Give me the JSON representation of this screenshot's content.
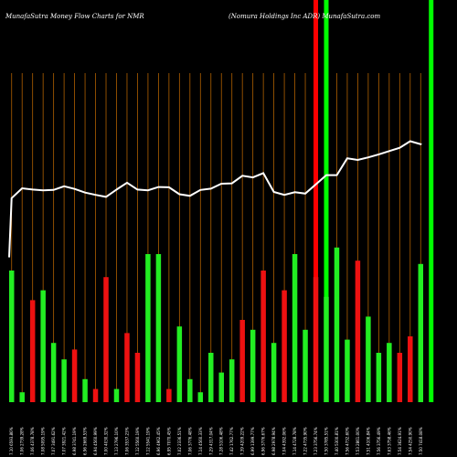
{
  "header": {
    "left": "MunafaSutra  Money Flow  Charts for NMR",
    "right": "(Nomura  Holdings  Inc ADR) MunafaSutra.com"
  },
  "chart_data": {
    "type": "bar",
    "title": "MunafaSutra  Money Flow  Charts for NMR",
    "subtitle": "(Nomura  Holdings  Inc ADR) MunafaSutra.com",
    "categories": [
      "7.10 6593.86%",
      "7.06 2739.28%",
      "7.06 4378.78%",
      "7.08 5095.19%",
      "7.07 3491.62%",
      "7.07 3921.42%",
      "6.98 3741.19%",
      "6.96 2669.53%",
      "6.94 4560.99%",
      "7.00 4030.32%",
      "7.13 2796.10%",
      "7.06 3537.23%",
      "7.12 5560.19%",
      "7.12 5541.19%",
      "6.96 4962.45%",
      "6.95 7070.45%",
      "7.02 2336.51%",
      "7.06 3776.48%",
      "7.14 4560.33%",
      "7.29 4317.04%",
      "7.28 5106.48%",
      "7.42 1762.77%",
      "7.39 4209.22%",
      "6.99 1399.77%",
      "6.96 3776.67%",
      "6.98 2978.94%",
      "7.04 4392.06%",
      "7.14 4728.78%",
      "7.22 4735.90%",
      "7.23 3756.74%",
      "7.50 3785.51%",
      "7.40 5300.81%",
      "7.56 4732.60%",
      "7.53 2861.00%",
      "7.51 4106.84%",
      "7.56 3756.49%",
      "7.63 3758.46%",
      "7.54 3624.91%",
      "7.54 4250.90%",
      "7.50 7418.08%"
    ],
    "values": [
      40,
      3,
      31,
      34,
      18,
      13,
      16,
      7,
      4,
      38,
      4,
      21,
      15,
      45,
      45,
      4,
      23,
      7,
      3,
      15,
      9,
      13,
      25,
      22,
      40,
      18,
      34,
      45,
      22,
      38,
      32,
      47,
      19,
      43,
      26,
      15,
      18,
      15,
      20,
      42
    ],
    "colors": [
      "green",
      "green",
      "red",
      "green",
      "green",
      "green",
      "red",
      "green",
      "red",
      "red",
      "green",
      "red",
      "red",
      "green",
      "green",
      "red",
      "green",
      "green",
      "green",
      "green",
      "green",
      "green",
      "red",
      "green",
      "red",
      "green",
      "red",
      "green",
      "green",
      "red",
      "green",
      "green",
      "green",
      "red",
      "green",
      "green",
      "green",
      "red",
      "red",
      "green"
    ],
    "price_line": [
      62,
      65,
      64.6,
      64.4,
      64.5,
      65.6,
      64.8,
      63.7,
      63,
      62.4,
      64.6,
      66.7,
      64.6,
      64.4,
      65.4,
      65.3,
      63.2,
      62.7,
      64.5,
      64.9,
      66.4,
      66.5,
      68.8,
      68.3,
      69.6,
      63.9,
      63,
      63.8,
      63.4,
      66.2,
      69,
      69,
      74.1,
      73.6,
      74.4,
      75.3,
      76.3,
      77.3,
      79.3,
      78.4
    ],
    "price_last": 78.2,
    "ylim": [
      0,
      100
    ],
    "highlights": [
      {
        "slot": 29,
        "color": "#ff0000"
      },
      {
        "slot": 30,
        "color": "#00ff00"
      },
      {
        "slot": 40,
        "color": "#00ff00"
      }
    ],
    "grid": true,
    "series_colors": {
      "green": "#22ee22",
      "red": "#ee1111",
      "price_line": "#ffffff",
      "grid": "#b06000"
    }
  }
}
